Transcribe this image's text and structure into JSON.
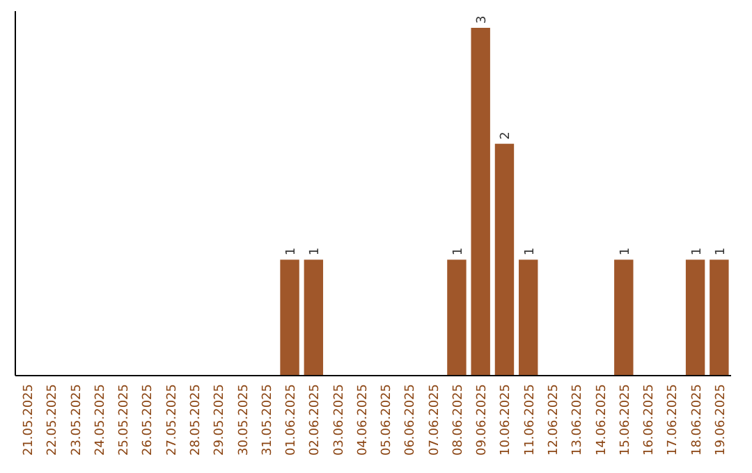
{
  "chart_data": {
    "type": "bar",
    "categories": [
      "21.05.2025",
      "22.05.2025",
      "23.05.2025",
      "24.05.2025",
      "25.05.2025",
      "26.05.2025",
      "27.05.2025",
      "28.05.2025",
      "29.05.2025",
      "30.05.2025",
      "31.05.2025",
      "01.06.2025",
      "02.06.2025",
      "03.06.2025",
      "04.06.2025",
      "05.06.2025",
      "06.06.2025",
      "07.06.2025",
      "08.06.2025",
      "09.06.2025",
      "10.06.2025",
      "11.06.2025",
      "12.06.2025",
      "13.06.2025",
      "14.06.2025",
      "15.06.2025",
      "16.06.2025",
      "17.06.2025",
      "18.06.2025",
      "19.06.2025"
    ],
    "values": [
      0,
      0,
      0,
      0,
      0,
      0,
      0,
      0,
      0,
      0,
      0,
      1,
      1,
      0,
      0,
      0,
      0,
      0,
      1,
      3,
      2,
      1,
      0,
      0,
      0,
      1,
      0,
      0,
      1,
      1
    ],
    "value_labels": [
      null,
      null,
      null,
      null,
      null,
      null,
      null,
      null,
      null,
      null,
      null,
      "1",
      "1",
      null,
      null,
      null,
      null,
      null,
      "1",
      "3",
      "2",
      "1",
      null,
      null,
      null,
      "1",
      null,
      null,
      "1",
      "1"
    ],
    "color": "#a0572a",
    "tick_labels": "x"
  }
}
